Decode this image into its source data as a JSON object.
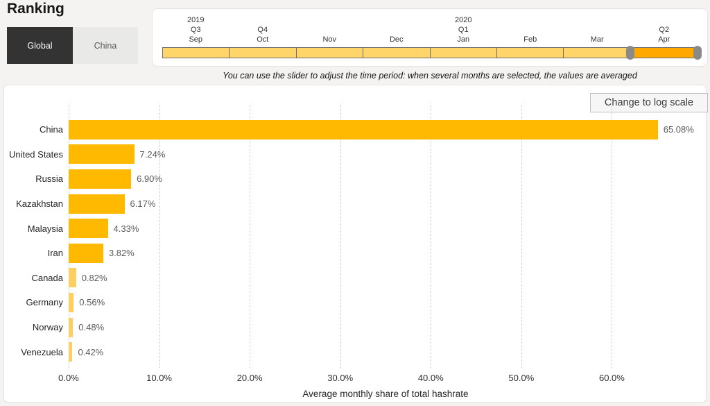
{
  "page": {
    "title": "Ranking"
  },
  "toggle": {
    "global_label": "Global",
    "china_label": "China",
    "selected": "Global",
    "selected_bg": "#333333",
    "unselected_bg": "#E9E9E8"
  },
  "slider": {
    "note": "You can use the slider to adjust the time period: when several months are selected, the values are averaged",
    "months": [
      {
        "month": "Sep",
        "quarter": "Q3",
        "year": "2019",
        "selected": false
      },
      {
        "month": "Oct",
        "quarter": "Q4",
        "selected": false
      },
      {
        "month": "Nov",
        "selected": false
      },
      {
        "month": "Dec",
        "selected": false
      },
      {
        "month": "Jan",
        "quarter": "Q1",
        "year": "2020",
        "selected": false
      },
      {
        "month": "Feb",
        "selected": false
      },
      {
        "month": "Mar",
        "selected": false
      },
      {
        "month": "Apr",
        "quarter": "Q2",
        "selected": true
      }
    ],
    "colors": {
      "unselected": "#FFD469",
      "selected": "#FFA800",
      "handle": "#8A8A8A"
    }
  },
  "chart": {
    "log_button_label": "Change to log scale"
  },
  "chart_data": {
    "type": "bar",
    "orientation": "horizontal",
    "title": "Ranking",
    "categories": [
      "China",
      "United States",
      "Russia",
      "Kazakhstan",
      "Malaysia",
      "Iran",
      "Canada",
      "Germany",
      "Norway",
      "Venezuela"
    ],
    "values": [
      65.08,
      7.24,
      6.9,
      6.17,
      4.33,
      3.82,
      0.82,
      0.56,
      0.48,
      0.42
    ],
    "value_labels": [
      "65.08%",
      "7.24%",
      "6.90%",
      "6.17%",
      "4.33%",
      "3.82%",
      "0.82%",
      "0.56%",
      "0.48%",
      "0.42%"
    ],
    "xlabel": "Average monthly share of total hashrate",
    "xticks": [
      "0.0%",
      "10.0%",
      "20.0%",
      "30.0%",
      "40.0%",
      "50.0%",
      "60.0%"
    ],
    "xtick_values": [
      0,
      10,
      20,
      30,
      40,
      50,
      60
    ],
    "xlim": [
      0,
      70
    ],
    "grid": "vertical-dotted",
    "legend": "none",
    "bar_color": "#FFB900",
    "bar_color_small": "#FFCE63"
  }
}
